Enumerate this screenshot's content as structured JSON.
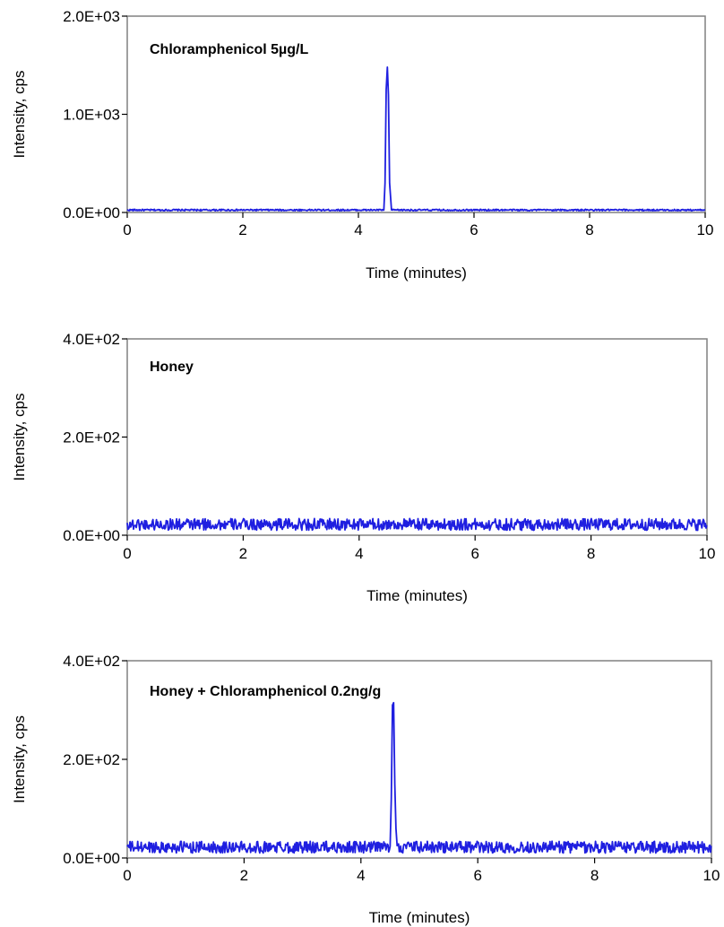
{
  "chart_data": [
    {
      "type": "line",
      "title": "Chloramphenicol 5µg/L",
      "xlabel": "Time (minutes)",
      "ylabel": "Intensity, cps",
      "xlim": [
        0,
        10
      ],
      "ylim": [
        0,
        2000
      ],
      "x_ticks": [
        "0",
        "2",
        "4",
        "6",
        "8",
        "10"
      ],
      "y_ticks": [
        "0.0E+00",
        "1.0E+03",
        "2.0E+03"
      ],
      "grid": false,
      "line_color": "#1f1fe0",
      "baseline": 25,
      "noise": 8,
      "peak": [
        [
          4.44,
          30
        ],
        [
          4.46,
          300
        ],
        [
          4.48,
          1250
        ],
        [
          4.5,
          1480
        ],
        [
          4.52,
          1200
        ],
        [
          4.54,
          300
        ],
        [
          4.57,
          40
        ]
      ]
    },
    {
      "type": "line",
      "title": "Honey",
      "xlabel": "Time (minutes)",
      "ylabel": "Intensity, cps",
      "xlim": [
        0,
        10
      ],
      "ylim": [
        0,
        400
      ],
      "x_ticks": [
        "0",
        "2",
        "4",
        "6",
        "8",
        "10"
      ],
      "y_ticks": [
        "0.0E+00",
        "2.0E+02",
        "4.0E+02"
      ],
      "grid": false,
      "line_color": "#1f1fe0",
      "baseline": 22,
      "noise": 12,
      "peak": []
    },
    {
      "type": "line",
      "title": "Honey + Chloramphenicol 0.2ng/g",
      "xlabel": "Time (minutes)",
      "ylabel": "Intensity, cps",
      "xlim": [
        0,
        10
      ],
      "ylim": [
        0,
        400
      ],
      "x_ticks": [
        "0",
        "2",
        "4",
        "6",
        "8",
        "10"
      ],
      "y_ticks": [
        "0.0E+00",
        "2.0E+02",
        "4.0E+02"
      ],
      "grid": false,
      "line_color": "#1f1fe0",
      "baseline": 22,
      "noise": 12,
      "peak": [
        [
          4.5,
          25
        ],
        [
          4.52,
          120
        ],
        [
          4.54,
          310
        ],
        [
          4.56,
          315
        ],
        [
          4.58,
          150
        ],
        [
          4.6,
          60
        ],
        [
          4.62,
          25
        ]
      ]
    }
  ]
}
